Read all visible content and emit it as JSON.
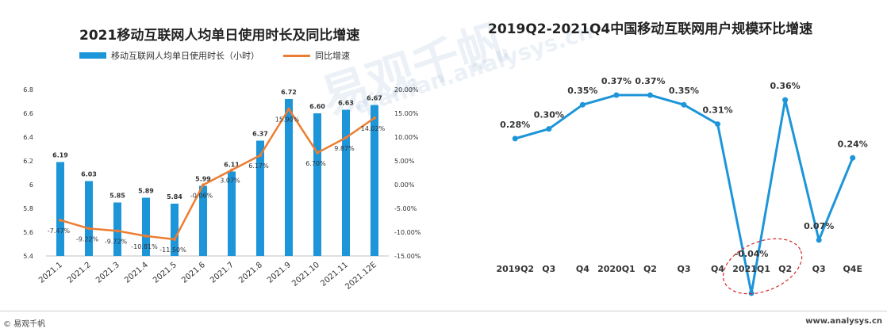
{
  "chart_data": [
    {
      "type": "bar",
      "title": "2021移动互联网人均单日使用时长及同比增速",
      "categories": [
        "2021.1",
        "2021.2",
        "2021.3",
        "2021.4",
        "2021.5",
        "2021.6",
        "2021.7",
        "2021.8",
        "2021.9",
        "2021.10",
        "2021.11",
        "2021.12E"
      ],
      "series": [
        {
          "name": "移动互联网人均单日使用时长（小时）",
          "type": "bar",
          "axis": "left",
          "values": [
            6.19,
            6.03,
            5.85,
            5.89,
            5.84,
            5.99,
            6.11,
            6.37,
            6.72,
            6.6,
            6.63,
            6.67
          ],
          "labels": [
            "6.19",
            "6.03",
            "5.85",
            "5.89",
            "5.84",
            "5.99",
            "6.11",
            "6.37",
            "6.72",
            "6.60",
            "6.63",
            "6.67"
          ]
        },
        {
          "name": "同比增速",
          "type": "line",
          "axis": "right",
          "values": [
            -7.47,
            -9.22,
            -9.72,
            -10.81,
            -11.5,
            -0.06,
            3.07,
            6.17,
            15.9,
            6.7,
            9.87,
            14.02
          ],
          "labels": [
            "-7.47%",
            "-9.22%",
            "-9.72%",
            "-10.81%",
            "-11.50%",
            "-0.06%",
            "3.07%",
            "6.17%",
            "15.90%",
            "6.70%",
            "9.87%",
            "14.02%"
          ]
        }
      ],
      "ylim_left": [
        5.4,
        6.8
      ],
      "yticks_left": [
        "6.8",
        "6.6",
        "6.4",
        "6.2",
        "6",
        "5.8",
        "5.6",
        "5.4"
      ],
      "ylim_right": [
        -15,
        20
      ],
      "yticks_right": [
        "20.00%",
        "15.00%",
        "10.00%",
        "5.00%",
        "0.00%",
        "-5.00%",
        "-10.00%",
        "-15.00%"
      ],
      "legend_position": "top-left",
      "colors": {
        "bar": "#1c95d9",
        "line": "#ed7d31"
      }
    },
    {
      "type": "line",
      "title": "2019Q2-2021Q4中国移动互联网用户规模环比增速",
      "categories": [
        "2019Q2",
        "Q3",
        "Q4",
        "2020Q1",
        "Q2",
        "Q3",
        "Q4",
        "2021Q1",
        "Q2",
        "Q3",
        "Q4E"
      ],
      "series": [
        {
          "values": [
            0.28,
            0.3,
            0.35,
            0.37,
            0.37,
            0.35,
            0.31,
            -0.04,
            0.36,
            0.07,
            0.24
          ],
          "labels": [
            "0.28%",
            "0.30%",
            "0.35%",
            "0.37%",
            "0.37%",
            "0.35%",
            "0.31%",
            "-0.04%",
            "0.36%",
            "0.07%",
            "0.24%"
          ]
        }
      ],
      "ylim": [
        -0.04,
        0.37
      ],
      "highlight_category": "2021Q1",
      "colors": {
        "line": "#1c95d9",
        "highlight": "#d62728"
      }
    }
  ],
  "footer": {
    "left": "© 易观千帆",
    "right": "www.analysys.cn"
  },
  "watermark": {
    "main": "易观千帆",
    "sub": "qianfan.analysys.cn"
  }
}
